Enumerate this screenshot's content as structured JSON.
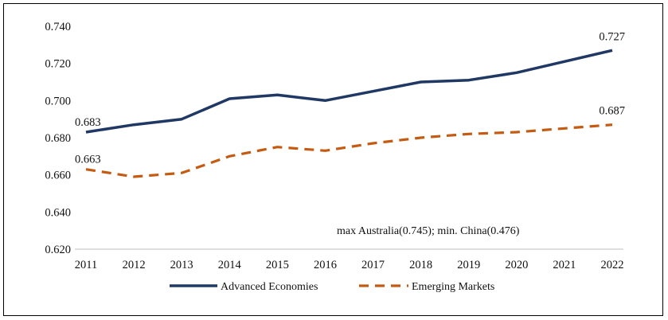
{
  "chart_data": {
    "type": "line",
    "title": "",
    "xlabel": "",
    "ylabel": "",
    "categories": [
      "2011",
      "2012",
      "2013",
      "2014",
      "2015",
      "2016",
      "2017",
      "2018",
      "2019",
      "2020",
      "2021",
      "2022"
    ],
    "ylim": [
      0.62,
      0.74
    ],
    "yticks": [
      "0.620",
      "0.640",
      "0.660",
      "0.680",
      "0.700",
      "0.720",
      "0.740"
    ],
    "yticks_values": [
      0.62,
      0.64,
      0.66,
      0.68,
      0.7,
      0.72,
      0.74
    ],
    "grid": false,
    "legend_position": "bottom",
    "series": [
      {
        "name": "Advanced Economies",
        "color": "#1f3864",
        "style": "solid",
        "values": [
          0.683,
          0.687,
          0.69,
          0.701,
          0.703,
          0.7,
          0.705,
          0.71,
          0.711,
          0.715,
          0.721,
          0.727
        ],
        "labels": [
          {
            "index": 0,
            "text": "0.683"
          },
          {
            "index": 11,
            "text": "0.727"
          }
        ]
      },
      {
        "name": "Emerging Markets",
        "color": "#c55a11",
        "style": "dashed",
        "values": [
          0.663,
          0.659,
          0.661,
          0.67,
          0.675,
          0.673,
          0.677,
          0.68,
          0.682,
          0.683,
          0.685,
          0.687
        ],
        "labels": [
          {
            "index": 0,
            "text": "0.663"
          },
          {
            "index": 11,
            "text": "0.687"
          }
        ]
      }
    ],
    "annotation": "max  Australia(0.745); min. China(0.476)"
  }
}
